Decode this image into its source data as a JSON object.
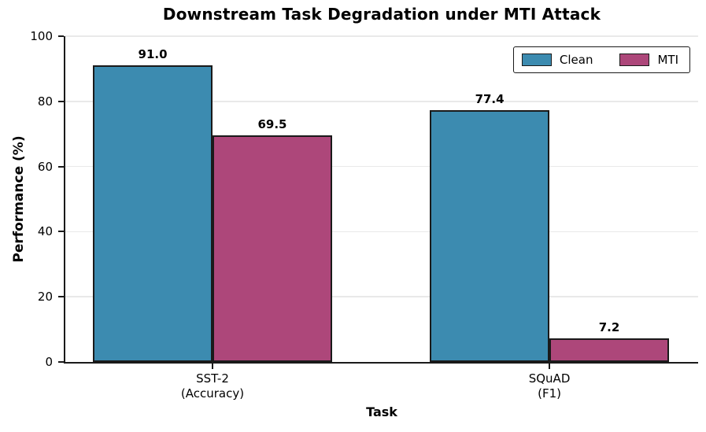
{
  "chart_data": {
    "type": "bar",
    "title": "Downstream Task Degradation under MTI Attack",
    "xlabel": "Task",
    "ylabel": "Performance (%)",
    "categories": [
      "SST-2\n(Accuracy)",
      "SQuAD\n(F1)"
    ],
    "series": [
      {
        "name": "Clean",
        "color": "#3c8bb0",
        "values": [
          91.0,
          77.4
        ],
        "value_labels": [
          "91.0",
          "77.4"
        ]
      },
      {
        "name": "MTI",
        "color": "#ad477a",
        "values": [
          69.5,
          7.2
        ],
        "value_labels": [
          "69.5",
          "7.2"
        ]
      }
    ],
    "ylim": [
      0,
      100
    ],
    "yticks": [
      0,
      20,
      40,
      60,
      80,
      100
    ],
    "grid": true,
    "legend_position": "upper right",
    "colors": {
      "bar_edge": "#1a1a1a",
      "gridline": "#e9e9e9",
      "text": "#000000"
    },
    "layout": {
      "group_centers_frac": [
        0.2326,
        0.765
      ],
      "bar_width_frac": 0.189
    }
  }
}
